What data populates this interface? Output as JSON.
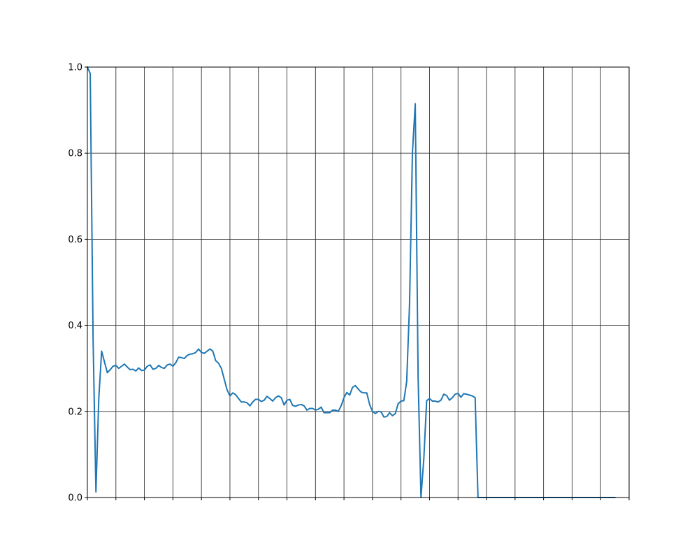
{
  "chart_data": {
    "type": "line",
    "title": "",
    "xlabel": "",
    "ylabel": "",
    "xlim": [
      0,
      190
    ],
    "ylim": [
      0,
      1
    ],
    "yticks": [
      "0.0",
      "0.2",
      "0.4",
      "0.6",
      "0.8",
      "1.0"
    ],
    "xtick_labels_shown": false,
    "vertical_gridlines_at": [
      0,
      10,
      20,
      30,
      40,
      50,
      60,
      70,
      80,
      90,
      100,
      110,
      120,
      130,
      140,
      150,
      160,
      170,
      180,
      190
    ],
    "horizontal_gridlines_at": [
      0,
      0.2,
      0.4,
      0.6,
      0.8,
      1.0
    ],
    "grid": true,
    "legend": "none",
    "series": [
      {
        "color": "#1f77b4",
        "points": [
          [
            0,
            1.0
          ],
          [
            1,
            0.985
          ],
          [
            2,
            0.37
          ],
          [
            3,
            0.013
          ],
          [
            4,
            0.23
          ],
          [
            5,
            0.34
          ],
          [
            6,
            0.315
          ],
          [
            7,
            0.29
          ],
          [
            8,
            0.297
          ],
          [
            9,
            0.305
          ],
          [
            10,
            0.307
          ],
          [
            11,
            0.3
          ],
          [
            12,
            0.305
          ],
          [
            13,
            0.31
          ],
          [
            14,
            0.303
          ],
          [
            15,
            0.297
          ],
          [
            16,
            0.298
          ],
          [
            17,
            0.294
          ],
          [
            18,
            0.301
          ],
          [
            19,
            0.295
          ],
          [
            20,
            0.296
          ],
          [
            21,
            0.305
          ],
          [
            22,
            0.308
          ],
          [
            23,
            0.298
          ],
          [
            24,
            0.3
          ],
          [
            25,
            0.307
          ],
          [
            26,
            0.302
          ],
          [
            27,
            0.3
          ],
          [
            28,
            0.308
          ],
          [
            29,
            0.31
          ],
          [
            30,
            0.305
          ],
          [
            31,
            0.313
          ],
          [
            32,
            0.326
          ],
          [
            33,
            0.325
          ],
          [
            34,
            0.323
          ],
          [
            35,
            0.33
          ],
          [
            36,
            0.333
          ],
          [
            37,
            0.334
          ],
          [
            38,
            0.337
          ],
          [
            39,
            0.345
          ],
          [
            40,
            0.337
          ],
          [
            41,
            0.335
          ],
          [
            42,
            0.34
          ],
          [
            43,
            0.345
          ],
          [
            44,
            0.34
          ],
          [
            45,
            0.318
          ],
          [
            46,
            0.312
          ],
          [
            47,
            0.3
          ],
          [
            48,
            0.275
          ],
          [
            49,
            0.25
          ],
          [
            50,
            0.236
          ],
          [
            51,
            0.243
          ],
          [
            52,
            0.239
          ],
          [
            53,
            0.23
          ],
          [
            54,
            0.222
          ],
          [
            55,
            0.222
          ],
          [
            56,
            0.22
          ],
          [
            57,
            0.213
          ],
          [
            58,
            0.222
          ],
          [
            59,
            0.228
          ],
          [
            60,
            0.228
          ],
          [
            61,
            0.223
          ],
          [
            62,
            0.226
          ],
          [
            63,
            0.235
          ],
          [
            64,
            0.23
          ],
          [
            65,
            0.224
          ],
          [
            66,
            0.232
          ],
          [
            67,
            0.236
          ],
          [
            68,
            0.232
          ],
          [
            69,
            0.215
          ],
          [
            70,
            0.226
          ],
          [
            71,
            0.228
          ],
          [
            72,
            0.214
          ],
          [
            73,
            0.212
          ],
          [
            74,
            0.215
          ],
          [
            75,
            0.216
          ],
          [
            76,
            0.213
          ],
          [
            77,
            0.203
          ],
          [
            78,
            0.207
          ],
          [
            79,
            0.207
          ],
          [
            80,
            0.203
          ],
          [
            81,
            0.205
          ],
          [
            82,
            0.21
          ],
          [
            83,
            0.197
          ],
          [
            84,
            0.197
          ],
          [
            85,
            0.197
          ],
          [
            86,
            0.203
          ],
          [
            87,
            0.203
          ],
          [
            88,
            0.2
          ],
          [
            89,
            0.213
          ],
          [
            90,
            0.232
          ],
          [
            91,
            0.244
          ],
          [
            92,
            0.238
          ],
          [
            93,
            0.256
          ],
          [
            94,
            0.26
          ],
          [
            95,
            0.252
          ],
          [
            96,
            0.245
          ],
          [
            97,
            0.243
          ],
          [
            98,
            0.243
          ],
          [
            99,
            0.216
          ],
          [
            100,
            0.2
          ],
          [
            101,
            0.195
          ],
          [
            102,
            0.2
          ],
          [
            103,
            0.199
          ],
          [
            104,
            0.187
          ],
          [
            105,
            0.188
          ],
          [
            106,
            0.197
          ],
          [
            107,
            0.19
          ],
          [
            108,
            0.195
          ],
          [
            109,
            0.218
          ],
          [
            110,
            0.224
          ],
          [
            111,
            0.225
          ],
          [
            112,
            0.27
          ],
          [
            113,
            0.45
          ],
          [
            114,
            0.8
          ],
          [
            115,
            0.915
          ],
          [
            116,
            0.28
          ],
          [
            117,
            0.0
          ],
          [
            118,
            0.09
          ],
          [
            119,
            0.225
          ],
          [
            120,
            0.23
          ],
          [
            121,
            0.224
          ],
          [
            122,
            0.224
          ],
          [
            123,
            0.222
          ],
          [
            124,
            0.226
          ],
          [
            125,
            0.24
          ],
          [
            126,
            0.237
          ],
          [
            127,
            0.226
          ],
          [
            128,
            0.232
          ],
          [
            129,
            0.24
          ],
          [
            130,
            0.242
          ],
          [
            131,
            0.233
          ],
          [
            132,
            0.241
          ],
          [
            133,
            0.24
          ],
          [
            134,
            0.238
          ],
          [
            135,
            0.236
          ],
          [
            136,
            0.232
          ],
          [
            137,
            0.0
          ],
          [
            138,
            0.0
          ],
          [
            150,
            0.0
          ],
          [
            160,
            0.0
          ],
          [
            170,
            0.0
          ],
          [
            180,
            0.0
          ],
          [
            185,
            0.0
          ]
        ]
      }
    ]
  }
}
